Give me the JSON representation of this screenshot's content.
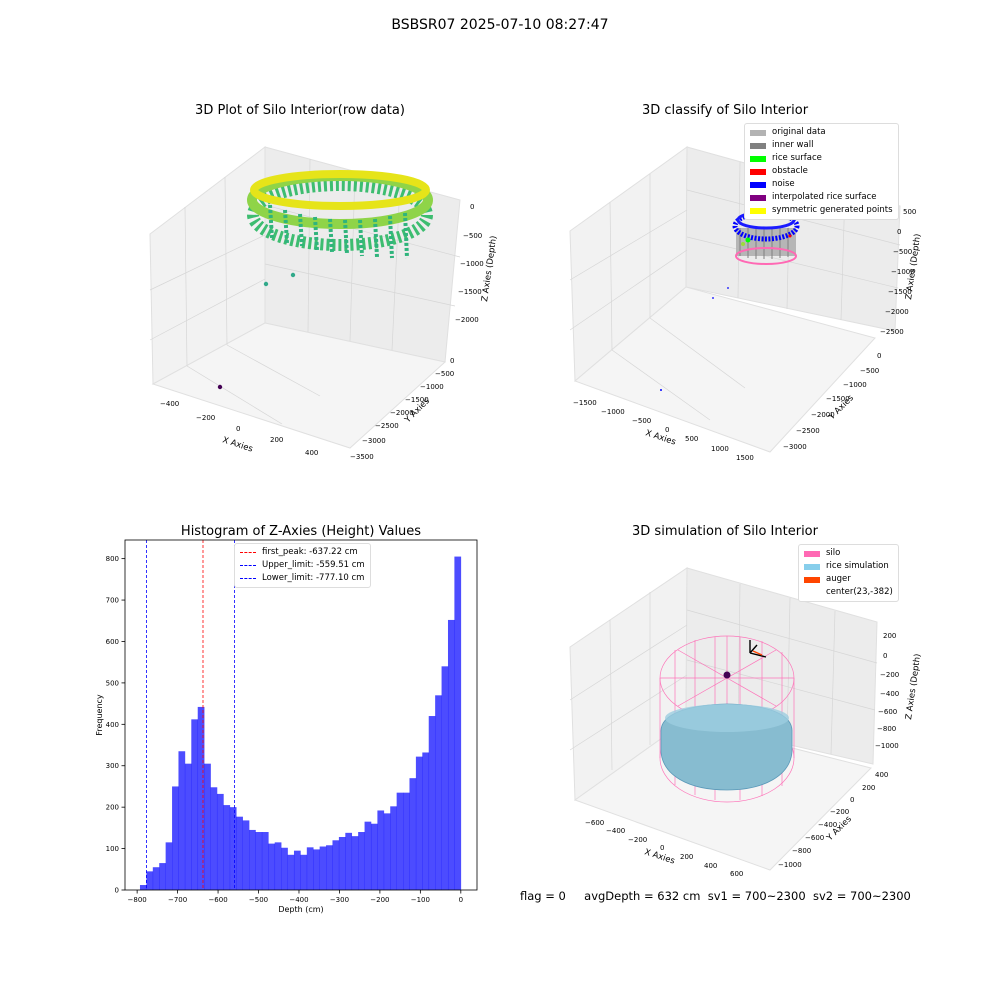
{
  "suptitle": "BSBSR07 2025-07-10 08:27:47",
  "panels": {
    "raw": {
      "title": "3D Plot of Silo Interior(row data)",
      "xlabel": "X Axies",
      "ylabel": "Y Axies",
      "zlabel": "Z Axies (Depth)",
      "xticks": [
        "−400",
        "−200",
        "0",
        "200",
        "400"
      ],
      "yticks": [
        "0",
        "−500",
        "−1000",
        "−1500",
        "−2000",
        "−2500",
        "−3000",
        "−3500"
      ],
      "zticks": [
        "0",
        "−500",
        "−1000",
        "−1500",
        "−2000"
      ]
    },
    "classify": {
      "title": "3D classify of Silo Interior",
      "xlabel": "X Axies",
      "ylabel": "Y Axies",
      "zlabel": "Z Axies (Depth)",
      "xticks": [
        "−1500",
        "−1000",
        "−500",
        "0",
        "500",
        "1000",
        "1500"
      ],
      "yticks": [
        "0",
        "−500",
        "−1000",
        "−1500",
        "−2000",
        "−2500",
        "−3000"
      ],
      "zticks": [
        "500",
        "0",
        "−500",
        "−1000",
        "−1500",
        "−2000",
        "−2500"
      ],
      "legend": [
        {
          "label": "original data",
          "color": "#b3b3b3"
        },
        {
          "label": "inner wall",
          "color": "#808080"
        },
        {
          "label": "rice surface",
          "color": "#00ff00"
        },
        {
          "label": "obstacle",
          "color": "#ff0000"
        },
        {
          "label": "noise",
          "color": "#0000ff"
        },
        {
          "label": "interpolated rice surface",
          "color": "#800080"
        },
        {
          "label": "symmetric generated points",
          "color": "#ffff00"
        }
      ]
    },
    "histogram": {
      "title": "Histogram of Z-Axies (Height) Values",
      "legend": [
        {
          "label": "first_peak: -637.22 cm",
          "color": "#ff0000"
        },
        {
          "label": "Upper_limit: -559.51 cm",
          "color": "#0000ff"
        },
        {
          "label": "Lower_limit: -777.10 cm",
          "color": "#0000ff"
        }
      ]
    },
    "simulation": {
      "title": "3D simulation of Silo Interior",
      "xlabel": "X Axies",
      "ylabel": "Y Axies",
      "zlabel": "Z Axies (Depth)",
      "xticks": [
        "−600",
        "−400",
        "−200",
        "0",
        "200",
        "400",
        "600"
      ],
      "yticks": [
        "400",
        "200",
        "0",
        "−200",
        "−400",
        "−600",
        "−800",
        "−1000"
      ],
      "zticks": [
        "200",
        "0",
        "−200",
        "−400",
        "−600",
        "−800",
        "−1000"
      ],
      "legend": [
        {
          "label": "silo",
          "color": "#ff69b4"
        },
        {
          "label": "rice simulation",
          "color": "#87ceeb"
        },
        {
          "label": "auger",
          "color": "#ff4500"
        },
        {
          "label": "center(23,-382)",
          "color": ""
        }
      ]
    }
  },
  "status": {
    "flag": "flag = 0",
    "avg": "avgDepth = 632 cm",
    "sv1": "sv1 = 700~2300",
    "sv2": "sv2 = 700~2300"
  },
  "chart_data": [
    {
      "type": "histogram",
      "title": "Histogram of Z-Axies (Height) Values",
      "xlabel": "Depth (cm)",
      "ylabel": "Frequency",
      "xlim": [
        -830,
        40
      ],
      "ylim": [
        0,
        845
      ],
      "xticks": [
        -800,
        -700,
        -600,
        -500,
        -400,
        -300,
        -200,
        -100,
        0
      ],
      "yticks": [
        0,
        100,
        200,
        300,
        400,
        500,
        600,
        700,
        800
      ],
      "bar_color": "#0000ff",
      "bar_alpha": 0.7,
      "bin_range": [
        -793,
        0
      ],
      "counts": [
        12,
        45,
        55,
        65,
        115,
        250,
        335,
        305,
        412,
        442,
        305,
        248,
        232,
        205,
        200,
        177,
        168,
        145,
        140,
        140,
        112,
        115,
        102,
        85,
        95,
        85,
        103,
        98,
        105,
        108,
        120,
        128,
        138,
        130,
        140,
        165,
        160,
        192,
        185,
        202,
        235,
        235,
        270,
        322,
        332,
        420,
        470,
        540,
        652,
        805
      ],
      "vlines": [
        {
          "x": -637.22,
          "color": "#ff0000",
          "label": "first_peak: -637.22 cm"
        },
        {
          "x": -559.51,
          "color": "#0000ff",
          "label": "Upper_limit: -559.51 cm"
        },
        {
          "x": -777.1,
          "color": "#0000ff",
          "label": "Lower_limit: -777.10 cm"
        }
      ],
      "legend_position": "upper-left"
    }
  ]
}
